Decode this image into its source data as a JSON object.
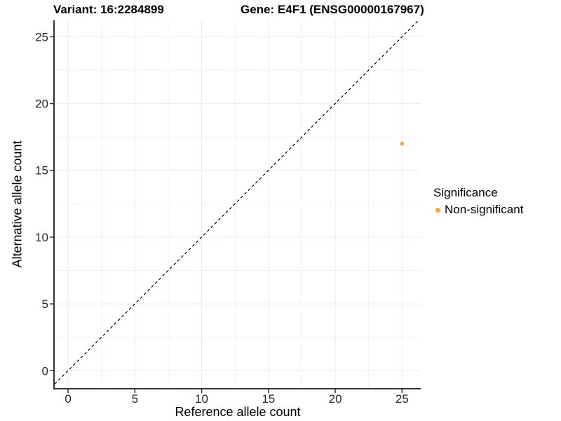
{
  "header": {
    "variant_title": "Variant: 16:2284899",
    "gene_title": "Gene: E4F1 (ENSG00000167967)"
  },
  "legend": {
    "title": "Significance",
    "items": [
      {
        "label": "Non-significant",
        "color": "#FAA53C"
      }
    ]
  },
  "chart_data": {
    "type": "scatter",
    "title": "Variant: 16:2284899 | Gene: E4F1 (ENSG00000167967)",
    "xlabel": "Reference allele count",
    "ylabel": "Alternative allele count",
    "xlim": [
      -1.0,
      26.4
    ],
    "ylim": [
      -1.3,
      26.23
    ],
    "xticks": [
      0,
      5,
      10,
      15,
      20,
      25
    ],
    "yticks": [
      0,
      5,
      10,
      15,
      20,
      25
    ],
    "xminor": [
      2.5,
      7.5,
      12.5,
      17.5,
      22.5
    ],
    "yminor": [
      2.5,
      7.5,
      12.5,
      17.5,
      22.5
    ],
    "grid": "major+minor",
    "legend_position": "right",
    "reference_line": {
      "kind": "identity-diagonal",
      "style": "dashed",
      "color": "#000000"
    },
    "series": [
      {
        "name": "Non-significant",
        "color": "#FAA53C",
        "points": [
          {
            "x": 25,
            "y": 17
          }
        ]
      }
    ],
    "colors": {
      "point": "#FAA53C",
      "axis": "#333333",
      "tick": "#333333",
      "tick_label": "#262626",
      "grid_major": "#EBEBEB",
      "grid_minor": "#F2F2F2",
      "ref_line": "#000000",
      "background": "#FFFFFF"
    }
  }
}
